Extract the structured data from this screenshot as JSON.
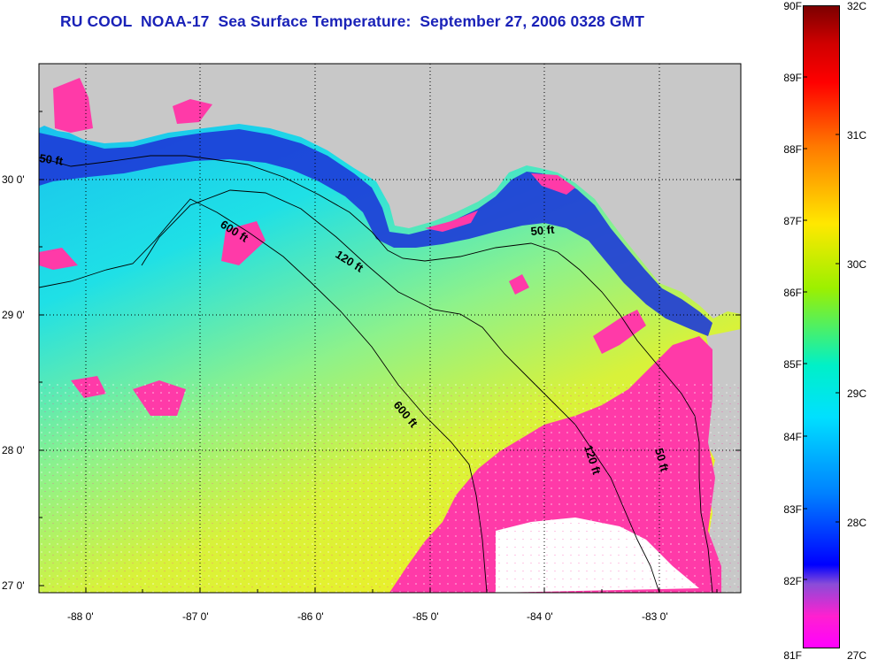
{
  "title": "RU COOL  NOAA-17  Sea Surface Temperature:  September 27, 2006 0328 GMT",
  "map": {
    "lat_ticks": [
      "30 0'",
      "29 0'",
      "28 0'",
      "27 0'"
    ],
    "lon_ticks": [
      "-88 0'",
      "-87 0'",
      "-86 0'",
      "-85 0'",
      "-84 0'",
      "-83 0'"
    ],
    "contour_labels": [
      "50 ft",
      "600 ft",
      "120 ft",
      "50 ft",
      "600 ft",
      "120 ft",
      "50 ft"
    ],
    "land_color": "#c8c8c8",
    "cloud_color": "#ff3aa8"
  },
  "colorbar": {
    "fahrenheit": [
      "90F",
      "89F",
      "88F",
      "87F",
      "86F",
      "85F",
      "84F",
      "83F",
      "82F",
      "81F"
    ],
    "celsius": [
      "32C",
      "31C",
      "30C",
      "29C",
      "28C",
      "27C"
    ],
    "colors": [
      "#8b0000",
      "#ff0000",
      "#ff8c00",
      "#ffff00",
      "#7fff00",
      "#00ffff",
      "#00a0ff",
      "#0000ff",
      "#8000ff",
      "#ff00ff"
    ]
  }
}
